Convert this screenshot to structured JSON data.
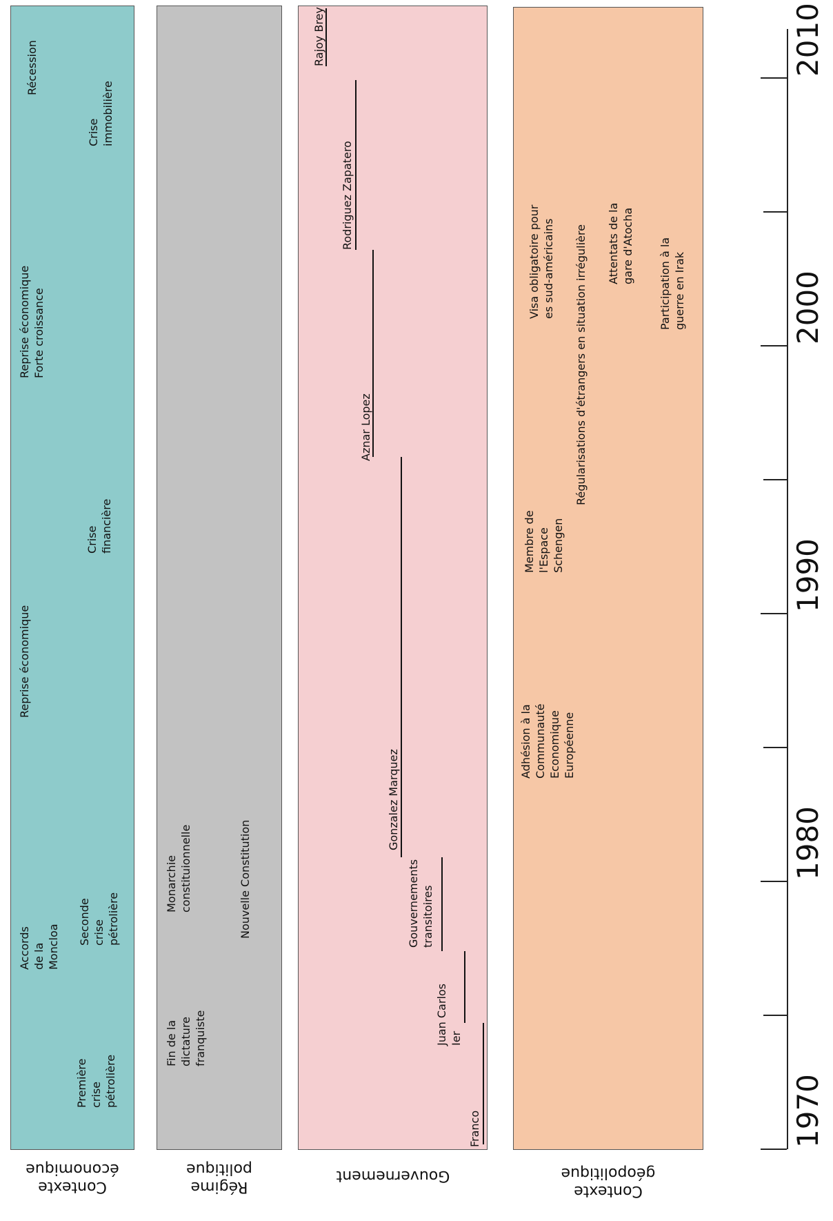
{
  "colors": {
    "economique": "#8ecbcb",
    "regime": "#c2c2c2",
    "gouvernement": "#f5cfd1",
    "geopolitique": "#f6c7a6"
  },
  "categories": {
    "economique": "Contexte\néconomique",
    "regime": "Régime\npolitique",
    "gouvernement": "Gouvernement",
    "geopolitique": "Contexte\ngéopolitique"
  },
  "axis": {
    "years": [
      "1970",
      "1980",
      "1990",
      "2000",
      "2010"
    ]
  },
  "economique": [
    "Première\ncrise\npétrolière",
    "Accords\nde la\nMoncloa",
    "Seconde\ncrise\npétrolière",
    "Reprise économique",
    "Crise\nfinancière",
    "Reprise économique\nForte croissance",
    "Crise\nimmobilière",
    "Récession"
  ],
  "regime": [
    "Fin de la\ndictature\nfranquiste",
    "Monarchie\nconstituionnelle",
    "Nouvelle Constitution"
  ],
  "gouvernement": [
    "Franco",
    "Juan Carlos\nIer",
    "Gouvernements\ntransitoires",
    "Gonzalez Marquez",
    "Aznar Lopez",
    "Rodriguez Zapatero",
    "Rajoy Brey"
  ],
  "geopolitique": [
    "Adhésion à la\nCommunauté\nEconomique\nEuropéenne",
    "Membre de\nl'Espace\nSchengen",
    "Visa obligatoire pour\nes sud-américains",
    "Régularisations d'étrangers en situation irrégulière",
    "Attentats de la\ngare d'Atocha",
    "Participation à la\nguerre en Irak"
  ]
}
